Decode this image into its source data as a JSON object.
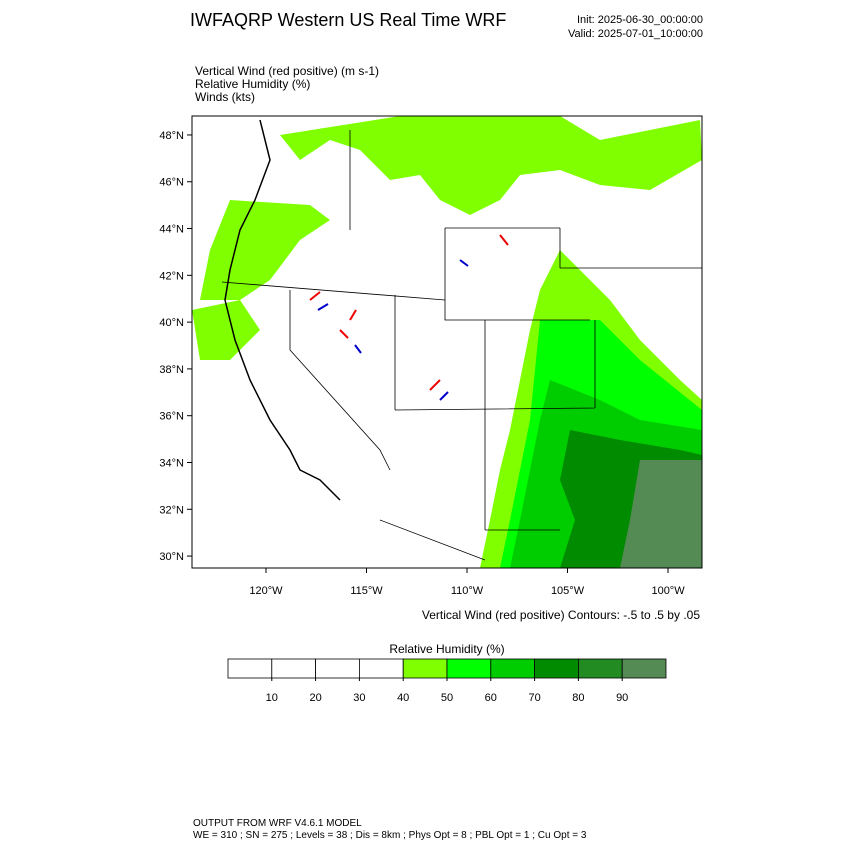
{
  "header": {
    "title": "IWFAQRP Western US Real Time WRF",
    "init": "Init: 2025-06-30_00:00:00",
    "valid": "Valid: 2025-07-01_10:00:00"
  },
  "fields": [
    "Vertical Wind (red positive)   (m s-1)",
    "Relative Humidity   (%)",
    "Winds   (kts)"
  ],
  "map": {
    "lat_range": [
      29.49,
      48.81
    ],
    "lon_range": [
      -123.68,
      -98.31
    ],
    "lat_ticks": [
      {
        "value": 48,
        "label": "48°N"
      },
      {
        "value": 46,
        "label": "46°N"
      },
      {
        "value": 44,
        "label": "44°N"
      },
      {
        "value": 42,
        "label": "42°N"
      },
      {
        "value": 40,
        "label": "40°N"
      },
      {
        "value": 38,
        "label": "38°N"
      },
      {
        "value": 36,
        "label": "36°N"
      },
      {
        "value": 34,
        "label": "34°N"
      },
      {
        "value": 32,
        "label": "32°N"
      },
      {
        "value": 30,
        "label": "30°N"
      }
    ],
    "lon_ticks": [
      {
        "value": -120,
        "label": "120°W"
      },
      {
        "value": -115,
        "label": "115°W"
      },
      {
        "value": -110,
        "label": "110°W"
      },
      {
        "value": -105,
        "label": "105°W"
      },
      {
        "value": -100,
        "label": "100°W"
      }
    ]
  },
  "contour_note": "Vertical Wind (red positive) Contours: -.5 to .5 by .05",
  "colorbar": {
    "title": "Relative Humidity   (%)",
    "levels": [
      10,
      20,
      30,
      40,
      50,
      60,
      70,
      80,
      90
    ],
    "colors": [
      "#ffffff",
      "#ffffff",
      "#ffffff",
      "#ffffff",
      "#80ff00",
      "#00ff00",
      "#00cd00",
      "#008b00",
      "#228b22",
      "#548b54"
    ]
  },
  "footer": [
    "OUTPUT FROM WRF V4.6.1 MODEL",
    "WE = 310 ; SN = 275 ; Levels = 38 ; Dis = 8km ; Phys Opt = 8 ; PBL Opt = 1 ; Cu Opt = 3"
  ]
}
